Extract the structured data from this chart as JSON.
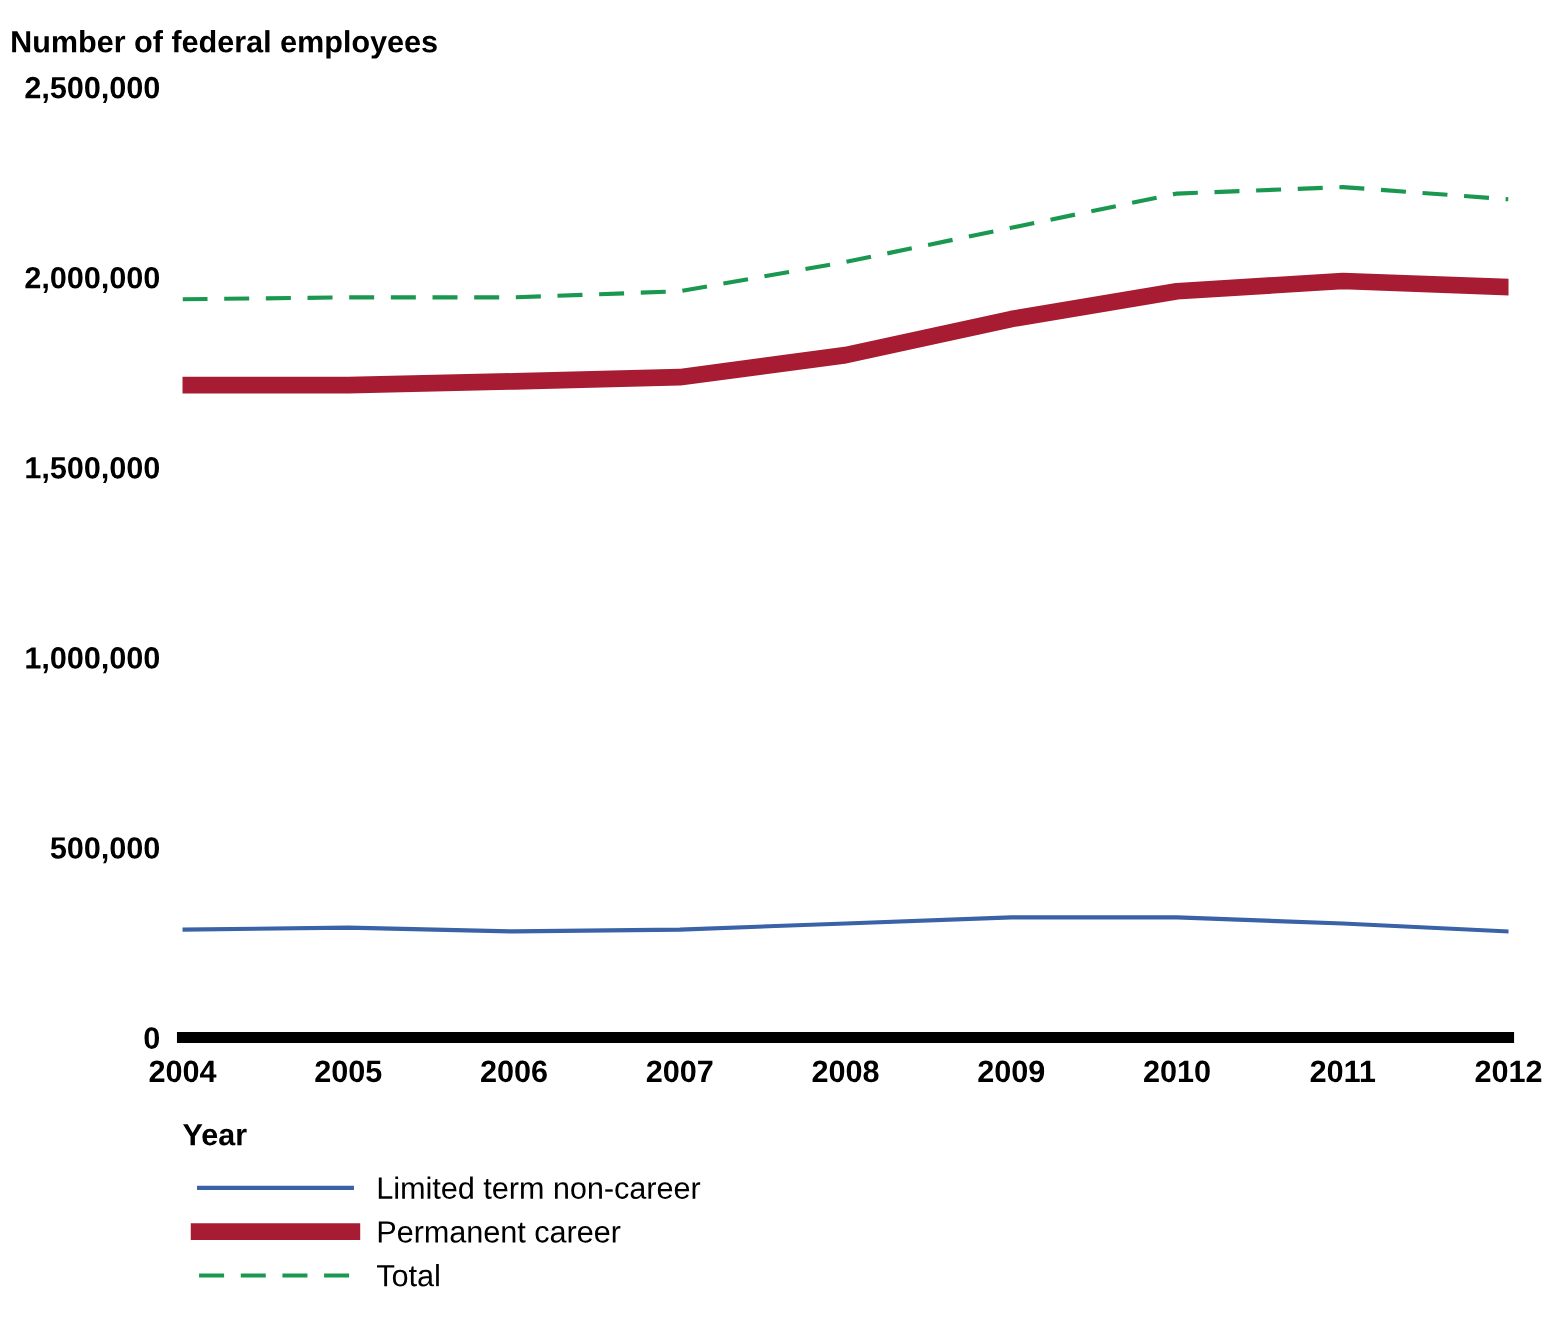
{
  "chart_data": {
    "type": "line",
    "ylabel": "Number of federal employees",
    "xlabel": "Year",
    "x": [
      2004,
      2005,
      2006,
      2007,
      2008,
      2009,
      2010,
      2011,
      2012
    ],
    "series": [
      {
        "name": "Limited term non-career",
        "color": "#3a62a6",
        "values": [
          284000,
          289000,
          279000,
          284000,
          300000,
          316000,
          316000,
          300000,
          279000
        ]
      },
      {
        "name": "Permanent career",
        "color": "#a71c32",
        "values": [
          1716000,
          1716000,
          1726000,
          1737000,
          1795000,
          1890000,
          1963000,
          1990000,
          1974000
        ]
      },
      {
        "name": "Total",
        "color": "#1a9850",
        "values": [
          1942000,
          1947000,
          1947000,
          1963000,
          2040000,
          2130000,
          2220000,
          2237000,
          2205000
        ],
        "line_style": "dashed"
      }
    ],
    "xlim": [
      2004,
      2012
    ],
    "xticks": [
      2004,
      2005,
      2006,
      2007,
      2008,
      2009,
      2010,
      2011,
      2012
    ],
    "ylim": [
      0,
      2500000
    ],
    "yticks": [
      {
        "value": 0,
        "label": "0"
      },
      {
        "value": 500000,
        "label": "500,000"
      },
      {
        "value": 1000000,
        "label": "1,000,000"
      },
      {
        "value": 1500000,
        "label": "1,500,000"
      },
      {
        "value": 2000000,
        "label": "2,000,000"
      },
      {
        "value": 2500000,
        "label": "2,500,000"
      }
    ],
    "grid": false,
    "legend": "bottom",
    "marker": "none",
    "line_style": "solid"
  }
}
